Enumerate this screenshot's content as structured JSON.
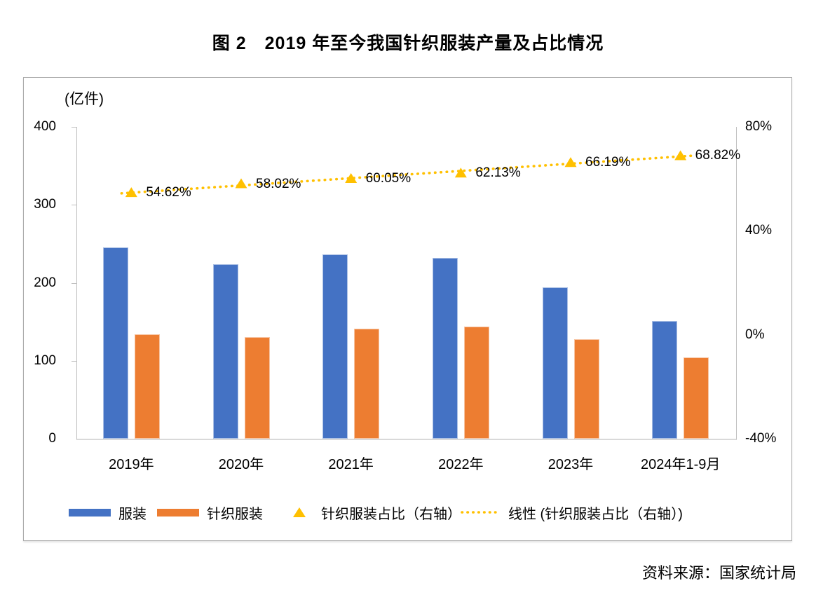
{
  "figure": {
    "title": "图 2　2019 年至今我国针织服装产量及占比情况",
    "source": "资料来源：国家统计局"
  },
  "chart_data": {
    "type": "bar",
    "title": "图 2　2019 年至今我国针织服装产量及占比情况",
    "unit_label": "(亿件)",
    "categories": [
      "2019年",
      "2020年",
      "2021年",
      "2022年",
      "2023年",
      "2024年1-9月"
    ],
    "series": [
      {
        "name": "服装",
        "type": "bar",
        "axis": "left",
        "color": "#4472C4",
        "values": [
          245,
          224,
          236,
          232,
          194,
          151
        ]
      },
      {
        "name": "针织服装",
        "type": "bar",
        "axis": "left",
        "color": "#ED7D31",
        "values": [
          134,
          130,
          141,
          144,
          128,
          104
        ]
      },
      {
        "name": "针织服装占比（右轴）",
        "type": "scatter",
        "marker": "triangle",
        "axis": "right",
        "color": "#FFC000",
        "values": [
          54.62,
          58.02,
          60.05,
          62.13,
          66.19,
          68.82
        ],
        "labels": [
          "54.62%",
          "58.02%",
          "60.05%",
          "62.13%",
          "66.19%",
          "68.82%"
        ]
      },
      {
        "name": "线性 (针织服装占比（右轴）)",
        "type": "trendline",
        "style": "dotted",
        "axis": "right",
        "color": "#FFC000"
      }
    ],
    "left_axis": {
      "min": 0,
      "max": 400,
      "ticks": [
        "400",
        "300",
        "200",
        "100",
        "0"
      ]
    },
    "right_axis": {
      "min": -40,
      "max": 80,
      "ticks": [
        "80%",
        "40%",
        "0%",
        "-40%"
      ]
    },
    "legend_position": "bottom",
    "grid": false
  }
}
